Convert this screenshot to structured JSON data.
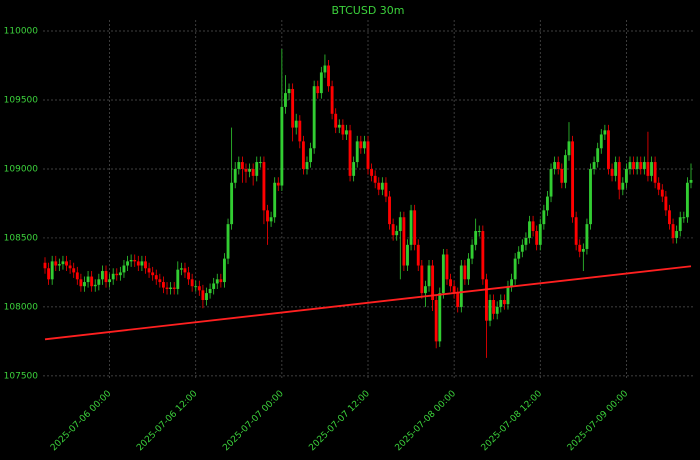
{
  "chart_data": {
    "type": "candlestick",
    "title": "BTCUSD 30m",
    "x": [
      "2025-07-05 15:00",
      "2025-07-05 15:30",
      "2025-07-05 16:00",
      "2025-07-05 16:30",
      "2025-07-05 17:00",
      "2025-07-05 17:30",
      "2025-07-05 18:00",
      "2025-07-05 18:30",
      "2025-07-05 19:00",
      "2025-07-05 19:30",
      "2025-07-05 20:00",
      "2025-07-05 20:30",
      "2025-07-05 21:00",
      "2025-07-05 21:30",
      "2025-07-05 22:00",
      "2025-07-05 22:30",
      "2025-07-05 23:00",
      "2025-07-05 23:30",
      "2025-07-06 00:00",
      "2025-07-06 00:30",
      "2025-07-06 01:00",
      "2025-07-06 01:30",
      "2025-07-06 02:00",
      "2025-07-06 02:30",
      "2025-07-06 03:00",
      "2025-07-06 03:30",
      "2025-07-06 04:00",
      "2025-07-06 04:30",
      "2025-07-06 05:00",
      "2025-07-06 05:30",
      "2025-07-06 06:00",
      "2025-07-06 06:30",
      "2025-07-06 07:00",
      "2025-07-06 07:30",
      "2025-07-06 08:00",
      "2025-07-06 08:30",
      "2025-07-06 09:00",
      "2025-07-06 09:30",
      "2025-07-06 10:00",
      "2025-07-06 10:30",
      "2025-07-06 11:00",
      "2025-07-06 11:30",
      "2025-07-06 12:00",
      "2025-07-06 12:30",
      "2025-07-06 13:00",
      "2025-07-06 13:30",
      "2025-07-06 14:00",
      "2025-07-06 14:30",
      "2025-07-06 15:00",
      "2025-07-06 15:30",
      "2025-07-06 16:00",
      "2025-07-06 16:30",
      "2025-07-06 17:00",
      "2025-07-06 17:30",
      "2025-07-06 18:00",
      "2025-07-06 18:30",
      "2025-07-06 19:00",
      "2025-07-06 19:30",
      "2025-07-06 20:00",
      "2025-07-06 20:30",
      "2025-07-06 21:00",
      "2025-07-06 21:30",
      "2025-07-06 22:00",
      "2025-07-06 22:30",
      "2025-07-06 23:00",
      "2025-07-06 23:30",
      "2025-07-07 00:00",
      "2025-07-07 00:30",
      "2025-07-07 01:00",
      "2025-07-07 01:30",
      "2025-07-07 02:00",
      "2025-07-07 02:30",
      "2025-07-07 03:00",
      "2025-07-07 03:30",
      "2025-07-07 04:00",
      "2025-07-07 04:30",
      "2025-07-07 05:00",
      "2025-07-07 05:30",
      "2025-07-07 06:00",
      "2025-07-07 06:30",
      "2025-07-07 07:00",
      "2025-07-07 07:30",
      "2025-07-07 08:00",
      "2025-07-07 08:30",
      "2025-07-07 09:00",
      "2025-07-07 09:30",
      "2025-07-07 10:00",
      "2025-07-07 10:30",
      "2025-07-07 11:00",
      "2025-07-07 11:30",
      "2025-07-07 12:00",
      "2025-07-07 12:30",
      "2025-07-07 13:00",
      "2025-07-07 13:30",
      "2025-07-07 14:00",
      "2025-07-07 14:30",
      "2025-07-07 15:00",
      "2025-07-07 15:30",
      "2025-07-07 16:00",
      "2025-07-07 16:30",
      "2025-07-07 17:00",
      "2025-07-07 17:30",
      "2025-07-07 18:00",
      "2025-07-07 18:30",
      "2025-07-07 19:00",
      "2025-07-07 19:30",
      "2025-07-07 20:00",
      "2025-07-07 20:30",
      "2025-07-07 21:00",
      "2025-07-07 21:30",
      "2025-07-07 22:00",
      "2025-07-07 22:30",
      "2025-07-07 23:00",
      "2025-07-07 23:30",
      "2025-07-08 00:00",
      "2025-07-08 00:30",
      "2025-07-08 01:00",
      "2025-07-08 01:30",
      "2025-07-08 02:00",
      "2025-07-08 02:30",
      "2025-07-08 03:00",
      "2025-07-08 03:30",
      "2025-07-08 04:00",
      "2025-07-08 04:30",
      "2025-07-08 05:00",
      "2025-07-08 05:30",
      "2025-07-08 06:00",
      "2025-07-08 06:30",
      "2025-07-08 07:00",
      "2025-07-08 07:30",
      "2025-07-08 08:00",
      "2025-07-08 08:30",
      "2025-07-08 09:00",
      "2025-07-08 09:30",
      "2025-07-08 10:00",
      "2025-07-08 10:30",
      "2025-07-08 11:00",
      "2025-07-08 11:30",
      "2025-07-08 12:00",
      "2025-07-08 12:30",
      "2025-07-08 13:00",
      "2025-07-08 13:30",
      "2025-07-08 14:00",
      "2025-07-08 14:30",
      "2025-07-08 15:00",
      "2025-07-08 15:30",
      "2025-07-08 16:00",
      "2025-07-08 16:30",
      "2025-07-08 17:00",
      "2025-07-08 17:30",
      "2025-07-08 18:00",
      "2025-07-08 18:30",
      "2025-07-08 19:00",
      "2025-07-08 19:30",
      "2025-07-08 20:00",
      "2025-07-08 20:30",
      "2025-07-08 21:00",
      "2025-07-08 21:30",
      "2025-07-08 22:00",
      "2025-07-08 22:30",
      "2025-07-08 23:00",
      "2025-07-08 23:30",
      "2025-07-09 00:00",
      "2025-07-09 00:30",
      "2025-07-09 01:00",
      "2025-07-09 01:30",
      "2025-07-09 02:00",
      "2025-07-09 02:30",
      "2025-07-09 03:00",
      "2025-07-09 03:30",
      "2025-07-09 04:00",
      "2025-07-09 04:30",
      "2025-07-09 05:00",
      "2025-07-09 05:30",
      "2025-07-09 06:00",
      "2025-07-09 06:30",
      "2025-07-09 07:00",
      "2025-07-09 07:30",
      "2025-07-09 08:00",
      "2025-07-09 08:30",
      "2025-07-09 09:00"
    ],
    "open": [
      108320,
      108280,
      108200,
      108330,
      108300,
      108310,
      108330,
      108300,
      108280,
      108250,
      108200,
      108150,
      108180,
      108220,
      108150,
      108160,
      108200,
      108260,
      108180,
      108200,
      108240,
      108230,
      108250,
      108300,
      108330,
      108340,
      108330,
      108300,
      108330,
      108280,
      108250,
      108230,
      108200,
      108180,
      108140,
      108130,
      108140,
      108130,
      108270,
      108280,
      108250,
      108200,
      108150,
      108150,
      108120,
      108050,
      108100,
      108130,
      108170,
      108200,
      108180,
      108350,
      108600,
      108900,
      109000,
      109050,
      109000,
      108980,
      109000,
      108950,
      109050,
      109050,
      108700,
      108620,
      108650,
      108900,
      108880,
      109450,
      109550,
      109580,
      109300,
      109350,
      109200,
      109000,
      109050,
      109150,
      109600,
      109550,
      109700,
      109750,
      109600,
      109400,
      109300,
      109320,
      109250,
      109280,
      108950,
      109050,
      109200,
      109150,
      109200,
      109000,
      108950,
      108900,
      108850,
      108900,
      108800,
      108600,
      108520,
      108550,
      108650,
      108300,
      108450,
      108700,
      108450,
      108300,
      108100,
      108150,
      108300,
      108050,
      107750,
      108100,
      108380,
      108200,
      108150,
      108100,
      108000,
      108300,
      108200,
      108350,
      108450,
      108550,
      108550,
      108200,
      107900,
      108050,
      107950,
      108000,
      108050,
      108020,
      108150,
      108200,
      108350,
      108400,
      108450,
      108500,
      108620,
      108550,
      108450,
      108600,
      108700,
      108800,
      109000,
      109050,
      109000,
      108900,
      109100,
      109200,
      108650,
      108450,
      108400,
      108420,
      108600,
      109000,
      109050,
      109150,
      109250,
      109280,
      109000,
      108950,
      109050,
      108850,
      108900,
      109000,
      109050,
      109000,
      109050,
      109000,
      109050,
      108950,
      109050,
      108900,
      108850,
      108800,
      108700,
      108600,
      108500,
      108550,
      108650,
      108650,
      108900
    ],
    "high": [
      108360,
      108320,
      108370,
      108370,
      108350,
      108370,
      108370,
      108340,
      108320,
      108290,
      108240,
      108220,
      108260,
      108260,
      108200,
      108240,
      108300,
      108300,
      108240,
      108280,
      108280,
      108290,
      108340,
      108370,
      108380,
      108380,
      108370,
      108370,
      108370,
      108320,
      108290,
      108270,
      108240,
      108220,
      108180,
      108180,
      108180,
      108330,
      108320,
      108320,
      108290,
      108240,
      108190,
      108190,
      108160,
      108140,
      108170,
      108210,
      108240,
      108240,
      108390,
      108640,
      109300,
      109050,
      109090,
      109090,
      109040,
      109040,
      109040,
      109090,
      109090,
      109090,
      108740,
      108690,
      108940,
      108940,
      109870,
      109680,
      109620,
      109620,
      109400,
      109390,
      109240,
      109090,
      109190,
      109640,
      109640,
      109740,
      109830,
      109790,
      109640,
      109440,
      109360,
      109360,
      109320,
      109320,
      109090,
      109240,
      109240,
      109240,
      109240,
      109040,
      108990,
      108940,
      108940,
      108940,
      108840,
      108640,
      108590,
      108690,
      108690,
      108490,
      108740,
      108740,
      108490,
      108340,
      108190,
      108340,
      108340,
      108090,
      108140,
      108420,
      108420,
      108240,
      108190,
      108140,
      108340,
      108340,
      108390,
      108490,
      108640,
      108590,
      108590,
      108240,
      108090,
      108090,
      108040,
      108090,
      108090,
      108190,
      108240,
      108390,
      108440,
      108490,
      108540,
      108660,
      108660,
      108590,
      108640,
      108740,
      108840,
      109040,
      109090,
      109090,
      109040,
      109140,
      109340,
      109240,
      108690,
      108490,
      108460,
      108640,
      109040,
      109090,
      109190,
      109290,
      109320,
      109320,
      109040,
      109090,
      109090,
      108940,
      109040,
      109090,
      109090,
      109090,
      109090,
      109090,
      109270,
      109090,
      109090,
      108940,
      108890,
      108840,
      108740,
      108640,
      108590,
      108690,
      108690,
      108940,
      109040
    ],
    "low": [
      108240,
      108160,
      108160,
      108260,
      108260,
      108270,
      108260,
      108240,
      108210,
      108160,
      108110,
      108110,
      108140,
      108110,
      108110,
      108120,
      108160,
      108140,
      108140,
      108160,
      108190,
      108190,
      108210,
      108260,
      108290,
      108290,
      108260,
      108260,
      108240,
      108210,
      108190,
      108160,
      108140,
      108100,
      108090,
      108090,
      108090,
      108090,
      108230,
      108210,
      108160,
      108110,
      108110,
      108080,
      107990,
      108010,
      108060,
      108090,
      108130,
      108140,
      108140,
      108310,
      108560,
      108860,
      108960,
      108900,
      108900,
      108940,
      108880,
      108910,
      109010,
      108600,
      108450,
      108580,
      108610,
      108840,
      108840,
      109400,
      109500,
      109200,
      109250,
      109150,
      108960,
      108960,
      109010,
      109110,
      109510,
      109510,
      109660,
      109560,
      109360,
      109260,
      109260,
      109210,
      109210,
      108910,
      108910,
      109010,
      109110,
      109110,
      108960,
      108910,
      108860,
      108810,
      108810,
      108760,
      108560,
      108480,
      108480,
      108200,
      108260,
      108260,
      108410,
      108410,
      108260,
      108060,
      108000,
      108110,
      107970,
      107700,
      107710,
      108060,
      108160,
      108110,
      108060,
      107960,
      107960,
      108160,
      108160,
      108310,
      108410,
      108510,
      108160,
      107630,
      107860,
      107910,
      107910,
      107960,
      107980,
      107980,
      108110,
      108160,
      108310,
      108360,
      108410,
      108460,
      108510,
      108410,
      108410,
      108560,
      108660,
      108760,
      108960,
      108960,
      108860,
      108860,
      109060,
      108610,
      108410,
      108360,
      108260,
      108380,
      108560,
      108960,
      109010,
      109110,
      109210,
      108960,
      108910,
      108910,
      108780,
      108810,
      108860,
      108960,
      108960,
      108960,
      108960,
      108960,
      108910,
      108910,
      108860,
      108810,
      108760,
      108660,
      108560,
      108460,
      108460,
      108510,
      108610,
      108610,
      108860
    ],
    "close": [
      108280,
      108200,
      108330,
      108300,
      108310,
      108330,
      108300,
      108280,
      108250,
      108200,
      108150,
      108180,
      108220,
      108150,
      108160,
      108200,
      108260,
      108180,
      108200,
      108240,
      108230,
      108250,
      108300,
      108330,
      108340,
      108330,
      108300,
      108330,
      108280,
      108250,
      108230,
      108200,
      108180,
      108140,
      108130,
      108140,
      108130,
      108270,
      108280,
      108250,
      108200,
      108150,
      108150,
      108120,
      108050,
      108100,
      108130,
      108170,
      108200,
      108180,
      108350,
      108600,
      108900,
      109000,
      109050,
      109000,
      108980,
      109000,
      108950,
      109050,
      109050,
      108700,
      108620,
      108650,
      108900,
      108880,
      109450,
      109550,
      109580,
      109300,
      109350,
      109200,
      109000,
      109050,
      109150,
      109600,
      109550,
      109700,
      109750,
      109600,
      109400,
      109300,
      109320,
      109250,
      109280,
      108950,
      109050,
      109200,
      109150,
      109200,
      109000,
      108950,
      108900,
      108850,
      108900,
      108800,
      108600,
      108520,
      108550,
      108650,
      108300,
      108450,
      108700,
      108450,
      108300,
      108100,
      108150,
      108300,
      108050,
      107750,
      108100,
      108380,
      108200,
      108150,
      108100,
      108000,
      108300,
      108200,
      108350,
      108450,
      108550,
      108550,
      108200,
      107900,
      108050,
      107950,
      108000,
      108050,
      108020,
      108150,
      108200,
      108350,
      108400,
      108450,
      108500,
      108620,
      108550,
      108450,
      108600,
      108700,
      108800,
      109000,
      109050,
      109000,
      108900,
      109100,
      109200,
      108650,
      108450,
      108400,
      108420,
      108600,
      109000,
      109050,
      109150,
      109250,
      109280,
      109000,
      108950,
      109050,
      108850,
      108900,
      109000,
      109050,
      109000,
      109050,
      109000,
      109050,
      108950,
      109050,
      108900,
      108850,
      108800,
      108700,
      108600,
      108500,
      108550,
      108650,
      108650,
      108900,
      108920
    ],
    "up_color": "#32cd32",
    "down_color": "#ff0000",
    "trend_line": {
      "x": [
        "2025-07-05 15:00",
        "2025-07-09 09:00"
      ],
      "values": [
        107765,
        108295
      ],
      "color": "#ff2020"
    },
    "ylim": [
      107470,
      110080
    ],
    "yticks": [
      107500,
      108000,
      108500,
      109000,
      109500,
      110000
    ],
    "xticks": [
      "2025-07-06 00:00",
      "2025-07-06 12:00",
      "2025-07-07 00:00",
      "2025-07-07 12:00",
      "2025-07-08 00:00",
      "2025-07-08 12:00",
      "2025-07-09 00:00"
    ],
    "grid": true
  }
}
